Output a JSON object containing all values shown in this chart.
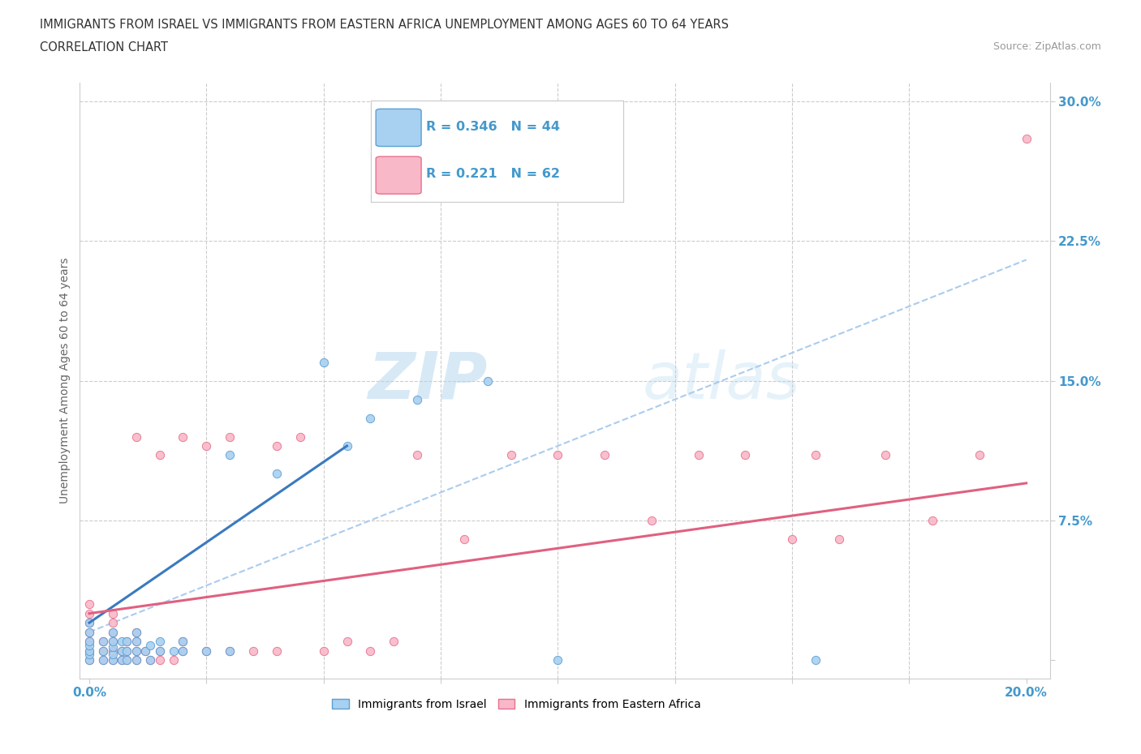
{
  "title_line1": "IMMIGRANTS FROM ISRAEL VS IMMIGRANTS FROM EASTERN AFRICA UNEMPLOYMENT AMONG AGES 60 TO 64 YEARS",
  "title_line2": "CORRELATION CHART",
  "source_text": "Source: ZipAtlas.com",
  "ylabel": "Unemployment Among Ages 60 to 64 years",
  "xlim": [
    -0.002,
    0.205
  ],
  "ylim": [
    -0.01,
    0.31
  ],
  "xticks": [
    0.0,
    0.025,
    0.05,
    0.075,
    0.1,
    0.125,
    0.15,
    0.175,
    0.2
  ],
  "xticklabels": [
    "0.0%",
    "",
    "",
    "",
    "",
    "",
    "",
    "",
    "20.0%"
  ],
  "yticks": [
    0.0,
    0.075,
    0.15,
    0.225,
    0.3
  ],
  "yticklabels": [
    "",
    "7.5%",
    "15.0%",
    "22.5%",
    "30.0%"
  ],
  "israel_fill": "#a8d0f0",
  "israel_edge": "#5b9fd4",
  "africa_fill": "#f8b8c8",
  "africa_edge": "#e87090",
  "trend_israel_color": "#3a7abf",
  "trend_africa_color": "#e06080",
  "trend_dash_color": "#aaccee",
  "R_israel": 0.346,
  "N_israel": 44,
  "R_africa": 0.221,
  "N_africa": 62,
  "legend_label_israel": "Immigrants from Israel",
  "legend_label_africa": "Immigrants from Eastern Africa",
  "watermark": "ZIPatlas",
  "background_color": "#ffffff",
  "grid_color": "#cccccc",
  "tick_label_color": "#4499cc",
  "israel_x": [
    0.0,
    0.0,
    0.0,
    0.0,
    0.0,
    0.0,
    0.0,
    0.003,
    0.003,
    0.003,
    0.005,
    0.005,
    0.005,
    0.005,
    0.005,
    0.007,
    0.007,
    0.007,
    0.008,
    0.008,
    0.008,
    0.01,
    0.01,
    0.01,
    0.01,
    0.012,
    0.013,
    0.013,
    0.015,
    0.015,
    0.018,
    0.02,
    0.02,
    0.025,
    0.03,
    0.03,
    0.04,
    0.05,
    0.055,
    0.06,
    0.07,
    0.085,
    0.1,
    0.155
  ],
  "israel_y": [
    0.0,
    0.003,
    0.005,
    0.008,
    0.01,
    0.015,
    0.02,
    0.0,
    0.005,
    0.01,
    0.0,
    0.003,
    0.007,
    0.01,
    0.015,
    0.0,
    0.005,
    0.01,
    0.0,
    0.005,
    0.01,
    0.0,
    0.005,
    0.01,
    0.015,
    0.005,
    0.0,
    0.008,
    0.005,
    0.01,
    0.005,
    0.005,
    0.01,
    0.005,
    0.005,
    0.11,
    0.1,
    0.16,
    0.115,
    0.13,
    0.14,
    0.15,
    0.0,
    0.0
  ],
  "africa_x": [
    0.0,
    0.0,
    0.0,
    0.0,
    0.0,
    0.0,
    0.0,
    0.003,
    0.003,
    0.003,
    0.005,
    0.005,
    0.005,
    0.005,
    0.005,
    0.005,
    0.007,
    0.007,
    0.008,
    0.008,
    0.008,
    0.01,
    0.01,
    0.01,
    0.01,
    0.01,
    0.012,
    0.013,
    0.015,
    0.015,
    0.015,
    0.018,
    0.02,
    0.02,
    0.02,
    0.025,
    0.025,
    0.03,
    0.03,
    0.035,
    0.04,
    0.04,
    0.045,
    0.05,
    0.055,
    0.06,
    0.065,
    0.07,
    0.08,
    0.09,
    0.1,
    0.11,
    0.12,
    0.13,
    0.14,
    0.15,
    0.155,
    0.16,
    0.17,
    0.18,
    0.19,
    0.2
  ],
  "africa_y": [
    0.0,
    0.005,
    0.01,
    0.015,
    0.02,
    0.025,
    0.03,
    0.0,
    0.005,
    0.01,
    0.0,
    0.005,
    0.01,
    0.015,
    0.02,
    0.025,
    0.0,
    0.005,
    0.0,
    0.005,
    0.01,
    0.0,
    0.005,
    0.01,
    0.015,
    0.12,
    0.005,
    0.0,
    0.0,
    0.005,
    0.11,
    0.0,
    0.005,
    0.01,
    0.12,
    0.005,
    0.115,
    0.005,
    0.12,
    0.005,
    0.005,
    0.115,
    0.12,
    0.005,
    0.01,
    0.005,
    0.01,
    0.11,
    0.065,
    0.11,
    0.11,
    0.11,
    0.075,
    0.11,
    0.11,
    0.065,
    0.11,
    0.065,
    0.11,
    0.075,
    0.11,
    0.28
  ],
  "israel_trend_x0": 0.0,
  "israel_trend_x1": 0.055,
  "israel_trend_y0": 0.02,
  "israel_trend_y1": 0.115,
  "africa_trend_x0": 0.0,
  "africa_trend_x1": 0.2,
  "africa_trend_y0": 0.025,
  "africa_trend_y1": 0.095,
  "dash_trend_x0": 0.0,
  "dash_trend_x1": 0.2,
  "dash_trend_y0": 0.015,
  "dash_trend_y1": 0.215
}
